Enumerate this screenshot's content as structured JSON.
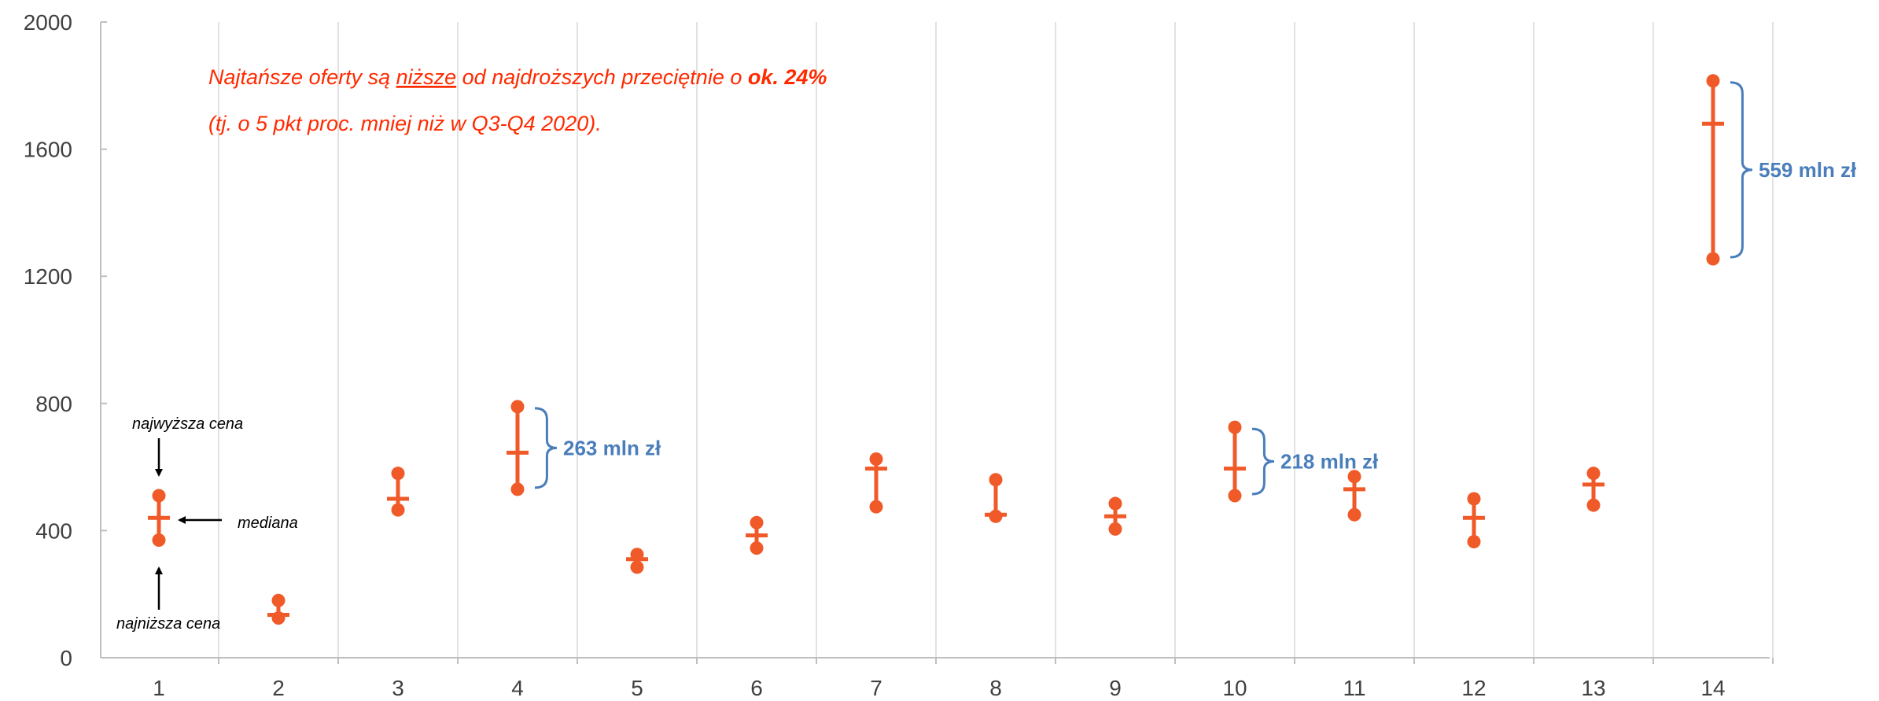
{
  "chart_data": {
    "type": "scatter",
    "title": "",
    "xlabel": "",
    "ylabel": "",
    "ylim": [
      0,
      2000
    ],
    "y_ticks": [
      "0",
      "400",
      "800",
      "1200",
      "1600",
      "2000"
    ],
    "grid": "vertical",
    "categories": [
      "1",
      "2",
      "3",
      "4",
      "5",
      "6",
      "7",
      "8",
      "9",
      "10",
      "11",
      "12",
      "13",
      "14"
    ],
    "series": [
      {
        "values": [
          510,
          180,
          580,
          790,
          325,
          425,
          625,
          560,
          485,
          725,
          570,
          500,
          580,
          1815
        ]
      },
      {
        "values": [
          440,
          135,
          500,
          645,
          310,
          385,
          595,
          450,
          445,
          595,
          530,
          440,
          545,
          1680
        ]
      },
      {
        "values": [
          370,
          125,
          465,
          530,
          285,
          345,
          475,
          445,
          405,
          510,
          450,
          365,
          480,
          1255
        ]
      }
    ],
    "colors": {
      "markers": "#f05a28",
      "brace": "#4a7ebb",
      "note": "#ff2a00",
      "grid": "#d9d9d9",
      "axis": "#bfbfbf"
    },
    "annotation": {
      "line1": {
        "a": "Najtańsze oferty są ",
        "b": "niższe",
        "c": " od najdroższych przeciętnie o ",
        "d": "ok. 24%"
      },
      "line2": "(tj. o 5 pkt proc. mniej niż w Q3-Q4 2020)."
    },
    "legend": {
      "high": "najwyższa cena",
      "median": "mediana",
      "low": "najniższa cena"
    },
    "ranges": [
      {
        "category": "4",
        "label": "263 mln zł"
      },
      {
        "category": "10",
        "label": "218 mln zł"
      },
      {
        "category": "14",
        "label": "559 mln zł"
      }
    ]
  }
}
